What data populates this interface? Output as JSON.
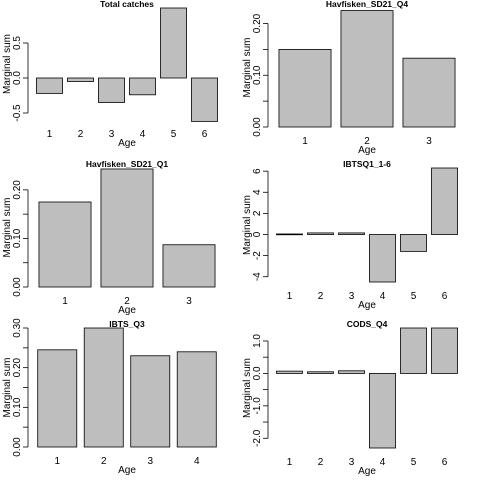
{
  "colors": {
    "bar_fill": "#bebebe",
    "bar_stroke": "#000000",
    "background": "#ffffff"
  },
  "chart_data": [
    {
      "type": "bar",
      "title": "Total catches",
      "xlabel": "Age",
      "ylabel": "Marginal sum",
      "categories": [
        "1",
        "2",
        "3",
        "4",
        "5",
        "6"
      ],
      "values": [
        -0.22,
        -0.05,
        -0.35,
        -0.24,
        1.0,
        -0.62
      ],
      "ylim": [
        -0.6,
        1.0
      ],
      "yticks": [
        -0.5,
        0.0,
        0.5
      ],
      "ytick_labels": [
        "-0.5",
        "0.0",
        "0.5"
      ],
      "grid": false
    },
    {
      "type": "bar",
      "title": "Havfisken_SD21_Q4",
      "xlabel": "Age",
      "ylabel": "Marginal sum",
      "categories": [
        "1",
        "2",
        "3"
      ],
      "values": [
        0.15,
        0.225,
        0.133
      ],
      "ylim": [
        0.0,
        0.23
      ],
      "yticks": [
        0.0,
        0.05,
        0.1,
        0.15,
        0.2
      ],
      "ytick_labels": [
        "0.00",
        "",
        "0.10",
        "",
        "0.20"
      ],
      "grid": false
    },
    {
      "type": "bar",
      "title": "Havfisken_SD21_Q1",
      "xlabel": "Age",
      "ylabel": "Marginal sum",
      "categories": [
        "1",
        "2",
        "3"
      ],
      "values": [
        0.175,
        0.243,
        0.087
      ],
      "ylim": [
        0.0,
        0.245
      ],
      "yticks": [
        0.0,
        0.05,
        0.1,
        0.15,
        0.2
      ],
      "ytick_labels": [
        "0.00",
        "",
        "0.10",
        "",
        "0.20"
      ],
      "grid": false
    },
    {
      "type": "bar",
      "title": "IBTSQ1_1-6",
      "xlabel": "Age",
      "ylabel": "Marginal sum",
      "categories": [
        "1",
        "2",
        "3",
        "4",
        "5",
        "6"
      ],
      "values": [
        0.05,
        0.15,
        0.15,
        -4.5,
        -1.6,
        6.3
      ],
      "ylim": [
        -4.5,
        6.3
      ],
      "yticks": [
        -4,
        -2,
        0,
        2,
        4,
        6
      ],
      "ytick_labels": [
        "-4",
        "-2",
        "0",
        "2",
        "4",
        "6"
      ],
      "grid": false
    },
    {
      "type": "bar",
      "title": "IBTS_Q3",
      "xlabel": "Age",
      "ylabel": "Marginal sum",
      "categories": [
        "1",
        "2",
        "3",
        "4"
      ],
      "values": [
        0.245,
        0.3,
        0.23,
        0.24
      ],
      "ylim": [
        0.0,
        0.3
      ],
      "yticks": [
        0.0,
        0.05,
        0.1,
        0.15,
        0.2,
        0.25,
        0.3
      ],
      "ytick_labels": [
        "0.00",
        "",
        "0.10",
        "",
        "0.20",
        "",
        "0.30"
      ],
      "grid": false
    },
    {
      "type": "bar",
      "title": "CODS_Q4",
      "xlabel": "Age",
      "ylabel": "Marginal sum",
      "categories": [
        "1",
        "2",
        "3",
        "4",
        "5",
        "6"
      ],
      "values": [
        0.07,
        0.05,
        0.08,
        -2.3,
        1.4,
        1.4
      ],
      "ylim": [
        -2.3,
        1.4
      ],
      "yticks": [
        -2.0,
        -1.5,
        -1.0,
        -0.5,
        0.0,
        0.5,
        1.0
      ],
      "ytick_labels": [
        "-2.0",
        "",
        "-1.0",
        "",
        "0.0",
        "",
        "1.0"
      ],
      "grid": false
    }
  ]
}
